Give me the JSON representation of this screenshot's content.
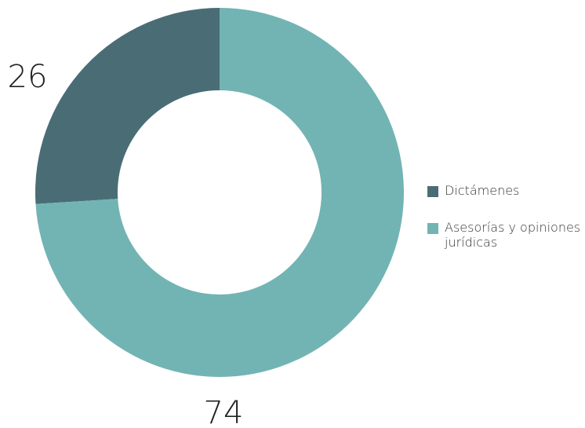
{
  "chart_data": {
    "type": "donut",
    "categories": [
      "Dictámenes",
      "Asesorías y opiniones jurídicas"
    ],
    "values": [
      26,
      74
    ],
    "colors": [
      "#4a6d75",
      "#72b4b3"
    ],
    "legend": "right"
  }
}
